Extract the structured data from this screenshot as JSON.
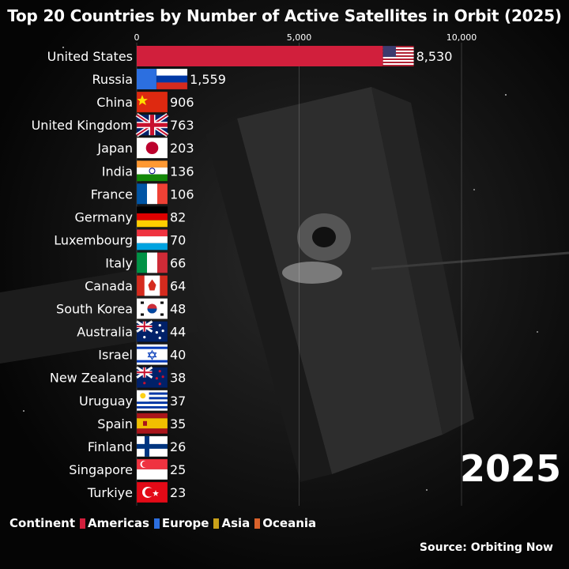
{
  "colors": {
    "Americas": "#d11f3c",
    "Europe": "#2c6fe0",
    "Asia": "#c9a019",
    "Oceania": "#d9622b"
  },
  "legend": {
    "title": "Continent",
    "items": [
      "Americas",
      "Europe",
      "Asia",
      "Oceania"
    ]
  },
  "year_label": "2025",
  "source": "Source: Orbiting Now",
  "chart_data": {
    "type": "bar",
    "orientation": "horizontal",
    "title": "Top 20 Countries by Number of Active Satellites in Orbit (2025)",
    "xlim": [
      0,
      10000
    ],
    "xticks": [
      0,
      5000,
      10000
    ],
    "xtick_labels": [
      "0",
      "5,000",
      "10,000"
    ],
    "grid": true,
    "legend_position": "bottom-left",
    "categories": [
      "United States",
      "Russia",
      "China",
      "United Kingdom",
      "Japan",
      "India",
      "France",
      "Germany",
      "Luxembourg",
      "Italy",
      "Canada",
      "South Korea",
      "Australia",
      "Israel",
      "New Zealand",
      "Uruguay",
      "Spain",
      "Finland",
      "Singapore",
      "Turkiye"
    ],
    "values": [
      8530,
      1559,
      906,
      763,
      203,
      136,
      106,
      82,
      70,
      66,
      64,
      48,
      44,
      40,
      38,
      37,
      35,
      26,
      25,
      23
    ],
    "value_labels": [
      "8,530",
      "1,559",
      "906",
      "763",
      "203",
      "136",
      "106",
      "82",
      "70",
      "66",
      "64",
      "48",
      "44",
      "40",
      "38",
      "37",
      "35",
      "26",
      "25",
      "23"
    ],
    "continents": [
      "Americas",
      "Europe",
      "Asia",
      "Europe",
      "Asia",
      "Asia",
      "Europe",
      "Europe",
      "Europe",
      "Europe",
      "Americas",
      "Asia",
      "Oceania",
      "Asia",
      "Oceania",
      "Americas",
      "Europe",
      "Europe",
      "Asia",
      "Asia"
    ],
    "flags": [
      "us-flag-icon",
      "russia-flag-icon",
      "china-flag-icon",
      "uk-flag-icon",
      "japan-flag-icon",
      "india-flag-icon",
      "france-flag-icon",
      "germany-flag-icon",
      "luxembourg-flag-icon",
      "italy-flag-icon",
      "canada-flag-icon",
      "south-korea-flag-icon",
      "australia-flag-icon",
      "israel-flag-icon",
      "new-zealand-flag-icon",
      "uruguay-flag-icon",
      "spain-flag-icon",
      "finland-flag-icon",
      "singapore-flag-icon",
      "turkiye-flag-icon"
    ]
  }
}
